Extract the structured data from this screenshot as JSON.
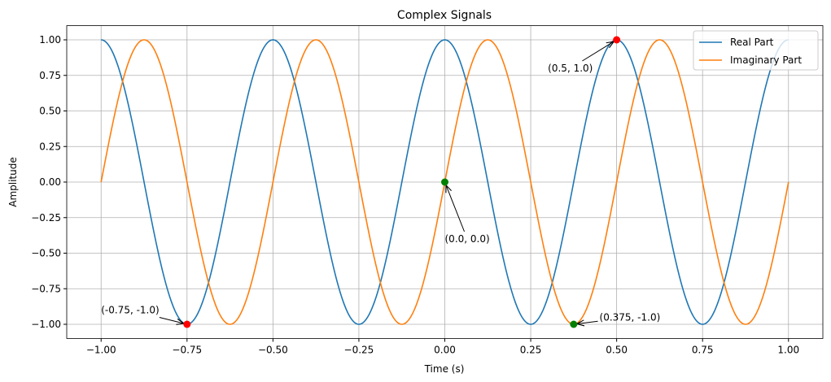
{
  "chart_data": {
    "type": "line",
    "title": "Complex Signals",
    "xlabel": "Time (s)",
    "ylabel": "Amplitude",
    "xlim": [
      -1.1,
      1.1
    ],
    "ylim": [
      -1.1,
      1.1
    ],
    "xticks": [
      -1.0,
      -0.75,
      -0.5,
      -0.25,
      0.0,
      0.25,
      0.5,
      0.75,
      1.0
    ],
    "xtick_labels": [
      "−1.00",
      "−0.75",
      "−0.50",
      "−0.25",
      "0.00",
      "0.25",
      "0.50",
      "0.75",
      "1.00"
    ],
    "yticks": [
      1.0,
      0.75,
      0.5,
      0.25,
      0.0,
      -0.25,
      -0.5,
      -0.75,
      -1.0
    ],
    "ytick_labels": [
      "1.00",
      "0.75",
      "0.50",
      "0.25",
      "0.00",
      "−0.25",
      "−0.50",
      "−0.75",
      "−1.00"
    ],
    "grid": true,
    "legend_position": "top-right",
    "series": [
      {
        "name": "Real Part",
        "function": "cos(4*pi*t)",
        "t_range": [
          -1,
          1
        ],
        "color": "#1f77b4"
      },
      {
        "name": "Imaginary Part",
        "function": "sin(4*pi*t)",
        "t_range": [
          -1,
          1
        ],
        "color": "#ff7f0e"
      }
    ],
    "annotations": [
      {
        "text": "(0.5, 1.0)",
        "point": [
          0.5,
          1.0
        ],
        "text_at": [
          0.3,
          0.8
        ],
        "color": "#ff0000"
      },
      {
        "text": "(-0.75, -1.0)",
        "point": [
          -0.75,
          -1.0
        ],
        "text_at": [
          -1.0,
          -0.9
        ],
        "color": "#ff0000"
      },
      {
        "text": "(0.0, 0.0)",
        "point": [
          0.0,
          0.0
        ],
        "text_at": [
          0.0,
          -0.4
        ],
        "color": "#008000"
      },
      {
        "text": "(0.375, -1.0)",
        "point": [
          0.375,
          -1.0
        ],
        "text_at": [
          0.45,
          -0.95
        ],
        "color": "#008000"
      }
    ]
  }
}
